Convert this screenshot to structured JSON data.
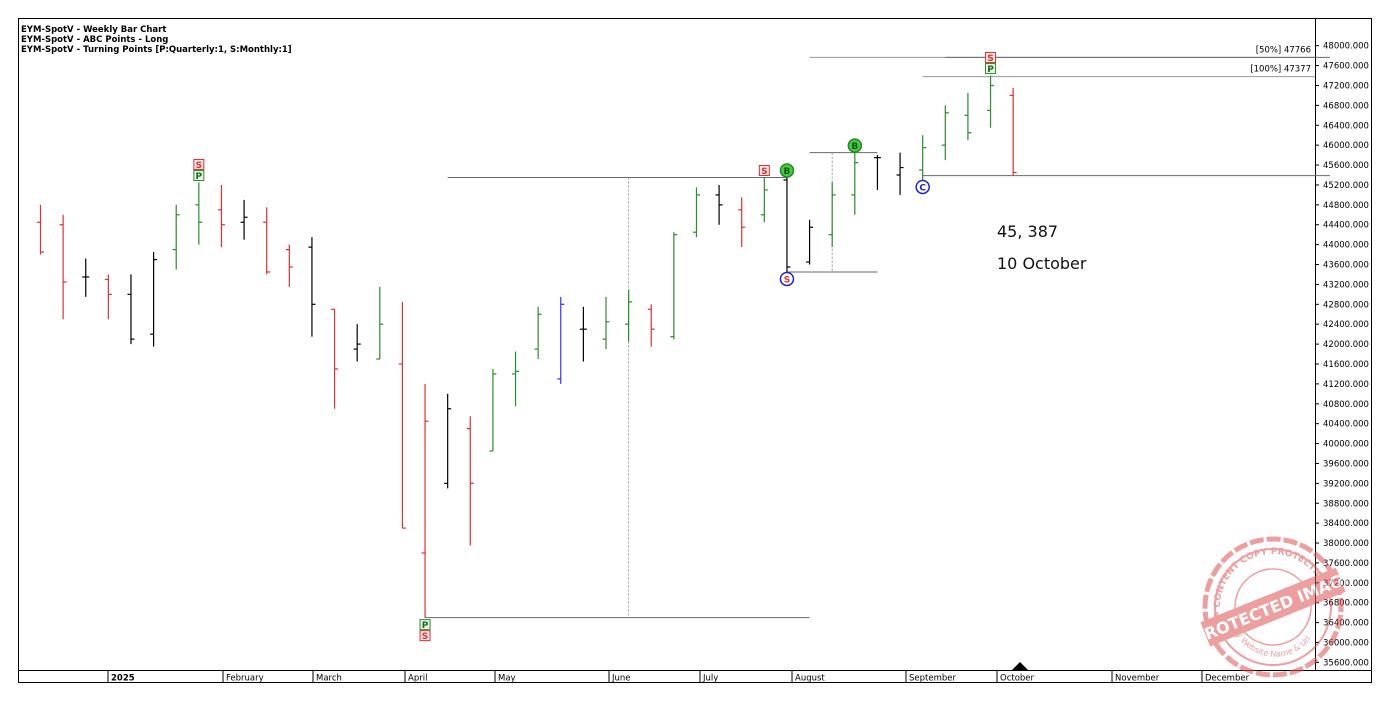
{
  "legend": [
    "EYM-SpotV - Weekly Bar Chart",
    "EYM-SpotV - ABC Points - Long",
    "EYM-SpotV - Turning Points [P:Quarterly:1, S:Monthly:1]"
  ],
  "annotations": {
    "price_text": "45, 387",
    "date_text": "10 October"
  },
  "watermark": {
    "main_text": "PROTECTED IMAGE",
    "ring_text_top": "WP CONTENT COPY PROTECTION PLUGIN",
    "ring_text_bottom": "My Website Name & Url"
  },
  "chart_data": {
    "type": "ohlc",
    "symbol": "EYM-SpotV",
    "period": "weekly",
    "ylim": [
      35300,
      48300
    ],
    "y_ticks": [
      35600,
      36000,
      36400,
      36800,
      37200,
      37600,
      38000,
      38400,
      38800,
      39200,
      39600,
      40000,
      40400,
      40800,
      41200,
      41600,
      42000,
      42400,
      42800,
      43200,
      43600,
      44000,
      44400,
      44800,
      45200,
      45600,
      46000,
      46400,
      46800,
      47200,
      47600,
      48000
    ],
    "x_labels": [
      "2025",
      "February",
      "March",
      "April",
      "May",
      "June",
      "July",
      "August",
      "September",
      "October",
      "November",
      "December"
    ],
    "colors": {
      "up": "#2e8b2e",
      "down": "#e03030",
      "neutral": "#000000",
      "special": "#3333ff",
      "level": "#808080"
    },
    "bars": [
      {
        "o": 44450,
        "h": 44800,
        "l": 43800,
        "c": 43850,
        "color": "down"
      },
      {
        "o": 44400,
        "h": 44600,
        "l": 42500,
        "c": 43250,
        "color": "down"
      },
      {
        "o": 43350,
        "h": 43720,
        "l": 42950,
        "c": 43350,
        "color": "neutral"
      },
      {
        "o": 43300,
        "h": 43400,
        "l": 42500,
        "c": 43000,
        "color": "down"
      },
      {
        "o": 43000,
        "h": 43400,
        "l": 42000,
        "c": 42100,
        "color": "neutral"
      },
      {
        "o": 42200,
        "h": 43850,
        "l": 41950,
        "c": 43700,
        "color": "neutral"
      },
      {
        "o": 43900,
        "h": 44800,
        "l": 43500,
        "c": 44600,
        "color": "up"
      },
      {
        "o": 44800,
        "h": 45250,
        "l": 44000,
        "c": 44450,
        "color": "up"
      },
      {
        "o": 44700,
        "h": 45200,
        "l": 43950,
        "c": 44400,
        "color": "down"
      },
      {
        "o": 44450,
        "h": 44900,
        "l": 44100,
        "c": 44550,
        "color": "neutral"
      },
      {
        "o": 44450,
        "h": 44750,
        "l": 43400,
        "c": 43450,
        "color": "down"
      },
      {
        "o": 43900,
        "h": 44000,
        "l": 43150,
        "c": 43550,
        "color": "down"
      },
      {
        "o": 43950,
        "h": 44150,
        "l": 42150,
        "c": 42800,
        "color": "neutral"
      },
      {
        "o": 42700,
        "h": 42700,
        "l": 40700,
        "c": 41500,
        "color": "down"
      },
      {
        "o": 41900,
        "h": 42400,
        "l": 41650,
        "c": 42000,
        "color": "neutral"
      },
      {
        "o": 41700,
        "h": 43150,
        "l": 41700,
        "c": 42400,
        "color": "up"
      },
      {
        "o": 41600,
        "h": 42850,
        "l": 38300,
        "c": 38300,
        "color": "down"
      },
      {
        "o": 37800,
        "h": 41200,
        "l": 36500,
        "c": 40450,
        "color": "down"
      },
      {
        "o": 39200,
        "h": 41000,
        "l": 39100,
        "c": 40700,
        "color": "neutral"
      },
      {
        "o": 40300,
        "h": 40550,
        "l": 37950,
        "c": 39200,
        "color": "down"
      },
      {
        "o": 39850,
        "h": 41500,
        "l": 39850,
        "c": 41400,
        "color": "up"
      },
      {
        "o": 41400,
        "h": 41850,
        "l": 40750,
        "c": 41450,
        "color": "up"
      },
      {
        "o": 41900,
        "h": 42750,
        "l": 41700,
        "c": 42600,
        "color": "up"
      },
      {
        "o": 41300,
        "h": 42950,
        "l": 41200,
        "c": 42800,
        "color": "special"
      },
      {
        "o": 42300,
        "h": 42750,
        "l": 41650,
        "c": 42300,
        "color": "neutral"
      },
      {
        "o": 42100,
        "h": 42950,
        "l": 41900,
        "c": 42450,
        "color": "up"
      },
      {
        "o": 42400,
        "h": 43100,
        "l": 42050,
        "c": 42850,
        "color": "up"
      },
      {
        "o": 42700,
        "h": 42800,
        "l": 41950,
        "c": 42300,
        "color": "down"
      },
      {
        "o": 42150,
        "h": 44250,
        "l": 42100,
        "c": 44200,
        "color": "up"
      },
      {
        "o": 44250,
        "h": 45150,
        "l": 44150,
        "c": 45000,
        "color": "up"
      },
      {
        "o": 45000,
        "h": 45200,
        "l": 44400,
        "c": 44800,
        "color": "neutral"
      },
      {
        "o": 44700,
        "h": 44950,
        "l": 43950,
        "c": 44350,
        "color": "down"
      },
      {
        "o": 44600,
        "h": 45350,
        "l": 44450,
        "c": 45100,
        "color": "up"
      },
      {
        "o": 45300,
        "h": 45350,
        "l": 43450,
        "c": 43550,
        "color": "neutral"
      },
      {
        "o": 43650,
        "h": 44500,
        "l": 43600,
        "c": 44350,
        "color": "neutral"
      },
      {
        "o": 44200,
        "h": 45250,
        "l": 43950,
        "c": 45000,
        "color": "up"
      },
      {
        "o": 45000,
        "h": 45850,
        "l": 44600,
        "c": 45650,
        "color": "up"
      },
      {
        "o": 45750,
        "h": 45800,
        "l": 45100,
        "c": 45750,
        "color": "neutral"
      },
      {
        "o": 45400,
        "h": 45850,
        "l": 45000,
        "c": 45550,
        "color": "neutral"
      },
      {
        "o": 45500,
        "h": 46200,
        "l": 45300,
        "c": 45950,
        "color": "up"
      },
      {
        "o": 46000,
        "h": 46800,
        "l": 45700,
        "c": 46650,
        "color": "up"
      },
      {
        "o": 46600,
        "h": 47050,
        "l": 46100,
        "c": 46250,
        "color": "up"
      },
      {
        "o": 46700,
        "h": 47400,
        "l": 46350,
        "c": 47200,
        "color": "up"
      },
      {
        "o": 47000,
        "h": 47150,
        "l": 45387,
        "c": 45450,
        "color": "down"
      }
    ],
    "levels": [
      {
        "label": "[50%] 47766",
        "value": 47766
      },
      {
        "label": "[100%] 47377",
        "value": 47377
      }
    ],
    "markers": [
      {
        "bar": 7,
        "text": "S",
        "kind": "turning-swing",
        "at": "high"
      },
      {
        "bar": 7,
        "text": "P",
        "kind": "turning-primary",
        "at": "high"
      },
      {
        "bar": 17,
        "text": "P",
        "kind": "turning-primary",
        "at": "low"
      },
      {
        "bar": 17,
        "text": "S",
        "kind": "turning-swing",
        "at": "low"
      },
      {
        "bar": 32,
        "text": "S",
        "kind": "turning-swing",
        "at": "high"
      },
      {
        "bar": 33,
        "text": "B",
        "kind": "abc-b",
        "at": "high"
      },
      {
        "bar": 33,
        "text": "S",
        "kind": "turning-swing",
        "at": "low"
      },
      {
        "bar": 36,
        "text": "B",
        "kind": "abc-b",
        "at": "high"
      },
      {
        "bar": 39,
        "text": "C",
        "kind": "abc-c",
        "at": "low"
      },
      {
        "bar": 42,
        "text": "S",
        "kind": "turning-swing",
        "at": "high"
      },
      {
        "bar": 42,
        "text": "P",
        "kind": "turning-primary",
        "at": "high"
      }
    ],
    "grid": false,
    "legend_position": "top-left"
  }
}
